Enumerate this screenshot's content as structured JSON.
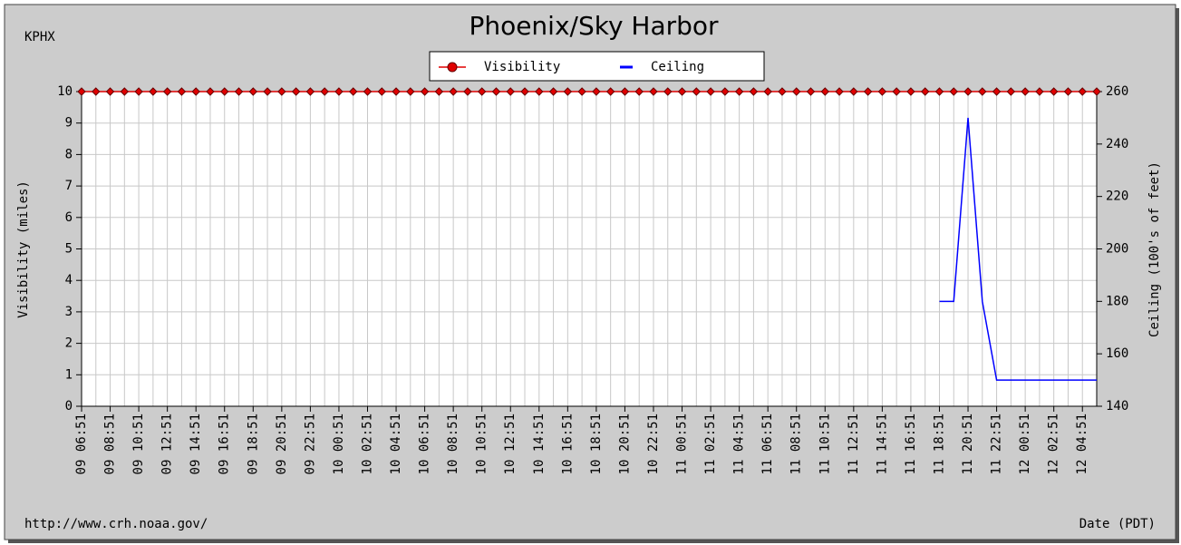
{
  "chart_data": {
    "type": "line",
    "title": "Phoenix/Sky Harbor",
    "station": "KPHX",
    "ylabel": "Visibility (miles)",
    "y2label": "Ceiling (100's of feet)",
    "xlabel": "Date (PDT)",
    "source": "http://www.crh.noaa.gov/",
    "categories": [
      "09 06:51",
      null,
      "09 08:51",
      null,
      "09 10:51",
      null,
      "09 12:51",
      null,
      "09 14:51",
      null,
      "09 16:51",
      null,
      "09 18:51",
      null,
      "09 20:51",
      null,
      "09 22:51",
      null,
      "10 00:51",
      null,
      "10 02:51",
      null,
      "10 04:51",
      null,
      "10 06:51",
      null,
      "10 08:51",
      null,
      "10 10:51",
      null,
      "10 12:51",
      null,
      "10 14:51",
      null,
      "10 16:51",
      null,
      "10 18:51",
      null,
      "10 20:51",
      null,
      "10 22:51",
      null,
      "11 00:51",
      null,
      "11 02:51",
      null,
      "11 04:51",
      null,
      "11 06:51",
      null,
      "11 08:51",
      null,
      "11 10:51",
      null,
      "11 12:51",
      null,
      "11 14:51",
      null,
      "11 16:51",
      null,
      "11 18:51",
      null,
      "11 20:51",
      null,
      "11 22:51",
      null,
      "12 00:51",
      null,
      "12 02:51",
      null,
      "12 04:51",
      null
    ],
    "series": [
      {
        "name": "Visibility",
        "color": "#e00000",
        "marker": true,
        "values": [
          10,
          10,
          10,
          10,
          10,
          10,
          10,
          10,
          10,
          10,
          10,
          10,
          10,
          10,
          10,
          10,
          10,
          10,
          10,
          10,
          10,
          10,
          10,
          10,
          10,
          10,
          10,
          10,
          10,
          10,
          10,
          10,
          10,
          10,
          10,
          10,
          10,
          10,
          10,
          10,
          10,
          10,
          10,
          10,
          10,
          10,
          10,
          10,
          10,
          10,
          10,
          10,
          10,
          10,
          10,
          10,
          10,
          10,
          10,
          10,
          10,
          10,
          10,
          10,
          10,
          10,
          10,
          10,
          10,
          10,
          10,
          10
        ]
      },
      {
        "name": "Ceiling",
        "color": "#0000ff",
        "axis": "y2",
        "marker": false,
        "values": [
          null,
          null,
          null,
          null,
          null,
          null,
          null,
          null,
          null,
          null,
          null,
          null,
          null,
          null,
          null,
          null,
          null,
          null,
          null,
          null,
          null,
          null,
          null,
          null,
          null,
          null,
          null,
          null,
          null,
          null,
          null,
          null,
          null,
          null,
          null,
          null,
          null,
          null,
          null,
          null,
          null,
          null,
          null,
          null,
          null,
          null,
          null,
          null,
          null,
          null,
          null,
          null,
          null,
          null,
          null,
          null,
          null,
          null,
          null,
          null,
          180,
          180,
          250,
          180,
          150,
          150,
          150,
          150,
          150,
          150,
          150,
          150
        ]
      }
    ],
    "ylim": [
      0,
      10
    ],
    "yticks": [
      0,
      1,
      2,
      3,
      4,
      5,
      6,
      7,
      8,
      9,
      10
    ],
    "y2lim": [
      140,
      260
    ],
    "y2ticks": [
      140,
      160,
      180,
      200,
      220,
      240,
      260
    ],
    "grid": true,
    "legend": "top"
  }
}
